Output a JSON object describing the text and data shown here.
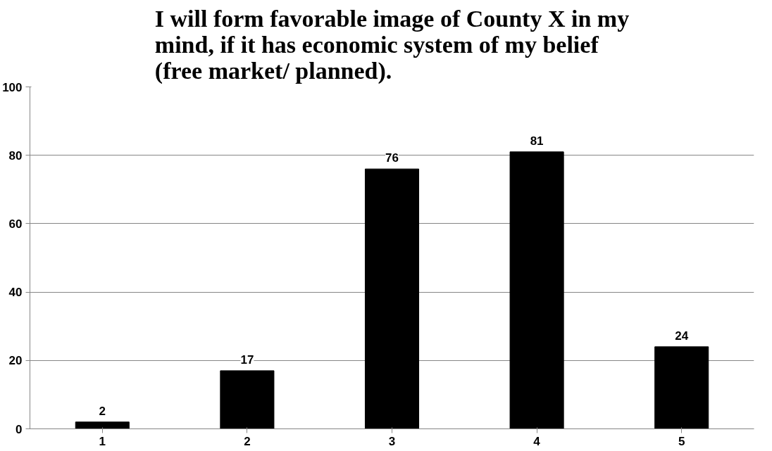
{
  "chart_data": {
    "type": "bar",
    "title": "I will form favorable image of County X in my mind, if it has economic system of my belief (free market/ planned).",
    "categories": [
      "1",
      "2",
      "3",
      "4",
      "5"
    ],
    "values": [
      2,
      17,
      76,
      81,
      24
    ],
    "color": "#000000",
    "ylim": [
      0,
      100
    ],
    "yticks": [
      0,
      20,
      40,
      60,
      80,
      100
    ],
    "grid": "y",
    "data_labels": true
  }
}
